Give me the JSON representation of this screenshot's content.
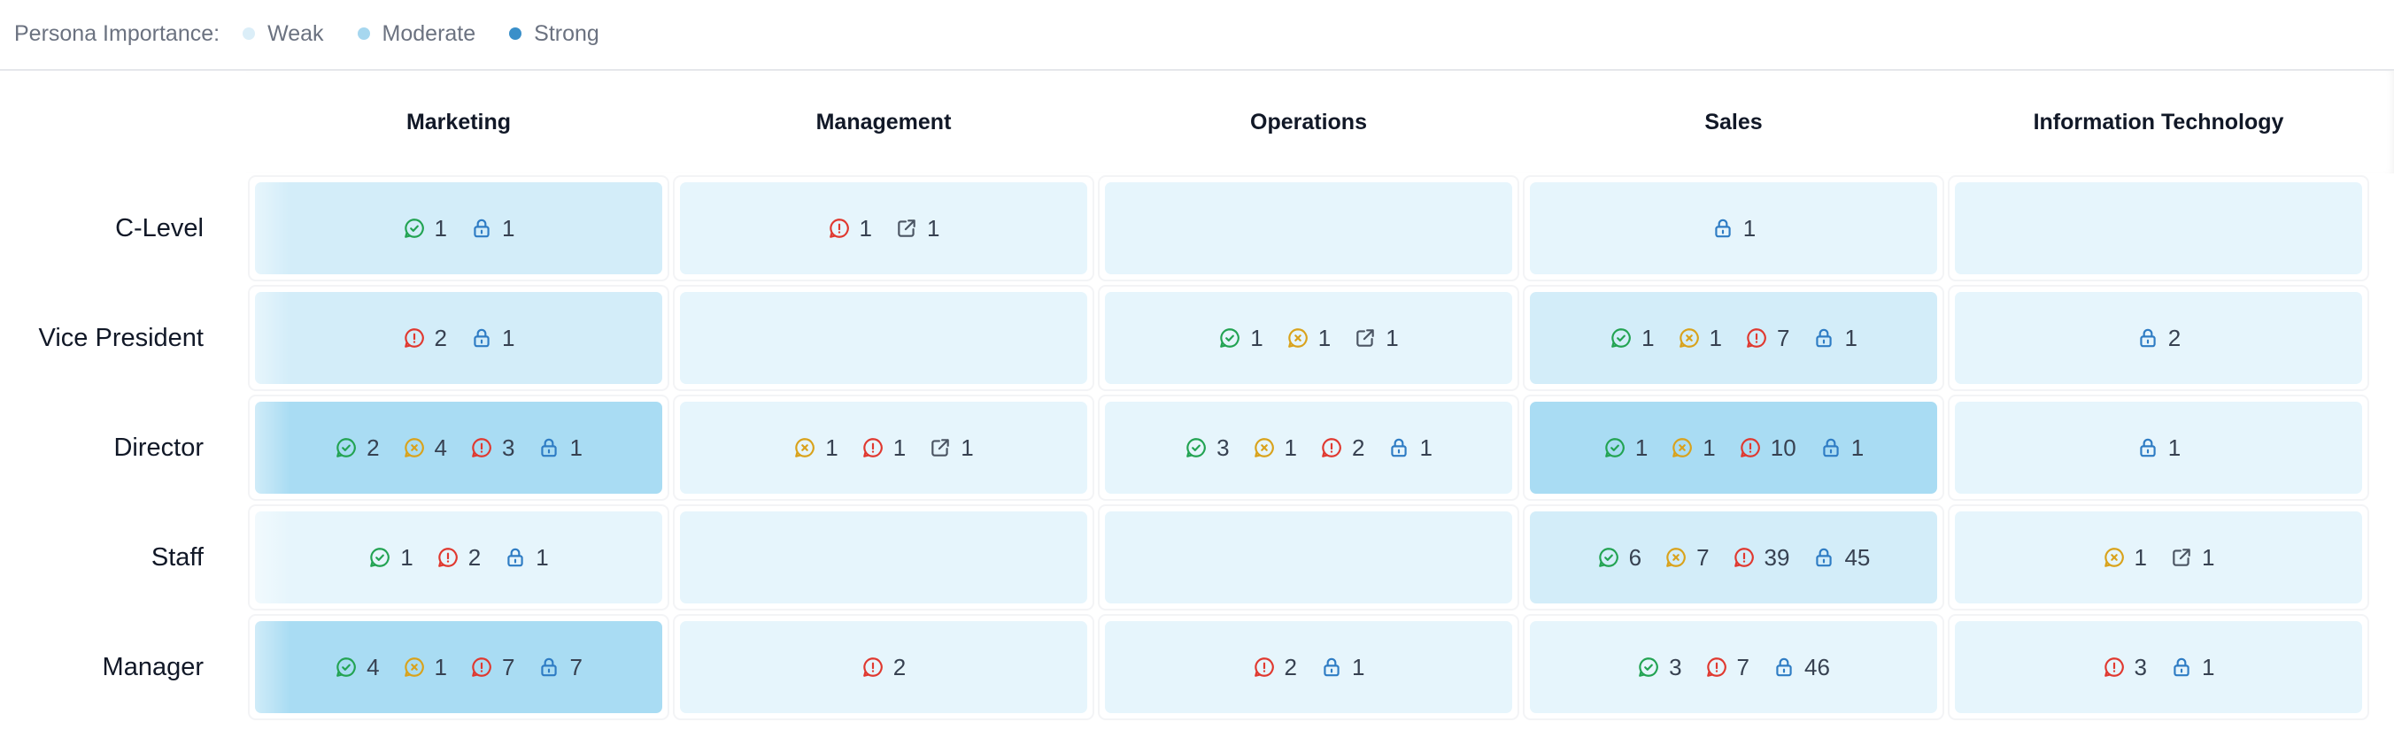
{
  "legend": {
    "title": "Persona Importance:",
    "items": [
      {
        "label": "Weak",
        "color": "#dbeef8"
      },
      {
        "label": "Moderate",
        "color": "#a6d7ef"
      },
      {
        "label": "Strong",
        "color": "#3a8fc9"
      }
    ]
  },
  "columns": [
    "Marketing",
    "Management",
    "Operations",
    "Sales",
    "Information Technology"
  ],
  "rows": [
    "C-Level",
    "Vice President",
    "Director",
    "Staff",
    "Manager"
  ],
  "icon_colors": {
    "check": "#22a352",
    "objection": "#d9a21b",
    "alert": "#e0382f",
    "lock": "#2e7cc4",
    "share": "#4b5563"
  },
  "cells": [
    [
      {
        "level": "moderate",
        "metrics": [
          {
            "icon": "check",
            "value": "1"
          },
          {
            "icon": "lock",
            "value": "1"
          }
        ]
      },
      {
        "level": "weak",
        "metrics": [
          {
            "icon": "alert",
            "value": "1"
          },
          {
            "icon": "share",
            "value": "1"
          }
        ]
      },
      {
        "level": "weak",
        "metrics": []
      },
      {
        "level": "weak",
        "metrics": [
          {
            "icon": "lock",
            "value": "1"
          }
        ]
      },
      {
        "level": "weak",
        "metrics": []
      }
    ],
    [
      {
        "level": "moderate",
        "metrics": [
          {
            "icon": "alert",
            "value": "2"
          },
          {
            "icon": "lock",
            "value": "1"
          }
        ]
      },
      {
        "level": "weak",
        "metrics": []
      },
      {
        "level": "weak",
        "metrics": [
          {
            "icon": "check",
            "value": "1"
          },
          {
            "icon": "objection",
            "value": "1"
          },
          {
            "icon": "share",
            "value": "1"
          }
        ]
      },
      {
        "level": "moderate",
        "metrics": [
          {
            "icon": "check",
            "value": "1"
          },
          {
            "icon": "objection",
            "value": "1"
          },
          {
            "icon": "alert",
            "value": "7"
          },
          {
            "icon": "lock",
            "value": "1"
          }
        ]
      },
      {
        "level": "weak",
        "metrics": [
          {
            "icon": "lock",
            "value": "2"
          }
        ]
      }
    ],
    [
      {
        "level": "strong",
        "metrics": [
          {
            "icon": "check",
            "value": "2"
          },
          {
            "icon": "objection",
            "value": "4"
          },
          {
            "icon": "alert",
            "value": "3"
          },
          {
            "icon": "lock",
            "value": "1"
          }
        ]
      },
      {
        "level": "weak",
        "metrics": [
          {
            "icon": "objection",
            "value": "1"
          },
          {
            "icon": "alert",
            "value": "1"
          },
          {
            "icon": "share",
            "value": "1"
          }
        ]
      },
      {
        "level": "weak",
        "metrics": [
          {
            "icon": "check",
            "value": "3"
          },
          {
            "icon": "objection",
            "value": "1"
          },
          {
            "icon": "alert",
            "value": "2"
          },
          {
            "icon": "lock",
            "value": "1"
          }
        ]
      },
      {
        "level": "strong",
        "metrics": [
          {
            "icon": "check",
            "value": "1"
          },
          {
            "icon": "objection",
            "value": "1"
          },
          {
            "icon": "alert",
            "value": "10"
          },
          {
            "icon": "lock",
            "value": "1"
          }
        ]
      },
      {
        "level": "weak",
        "metrics": [
          {
            "icon": "lock",
            "value": "1"
          }
        ]
      }
    ],
    [
      {
        "level": "weak",
        "metrics": [
          {
            "icon": "check",
            "value": "1"
          },
          {
            "icon": "alert",
            "value": "2"
          },
          {
            "icon": "lock",
            "value": "1"
          }
        ]
      },
      {
        "level": "weak",
        "metrics": []
      },
      {
        "level": "weak",
        "metrics": []
      },
      {
        "level": "moderate",
        "metrics": [
          {
            "icon": "check",
            "value": "6"
          },
          {
            "icon": "objection",
            "value": "7"
          },
          {
            "icon": "alert",
            "value": "39"
          },
          {
            "icon": "lock",
            "value": "45"
          }
        ]
      },
      {
        "level": "weak",
        "metrics": [
          {
            "icon": "objection",
            "value": "1"
          },
          {
            "icon": "share",
            "value": "1"
          }
        ]
      }
    ],
    [
      {
        "level": "strong",
        "metrics": [
          {
            "icon": "check",
            "value": "4"
          },
          {
            "icon": "objection",
            "value": "1"
          },
          {
            "icon": "alert",
            "value": "7"
          },
          {
            "icon": "lock",
            "value": "7"
          }
        ]
      },
      {
        "level": "weak",
        "metrics": [
          {
            "icon": "alert",
            "value": "2"
          }
        ]
      },
      {
        "level": "weak",
        "metrics": [
          {
            "icon": "alert",
            "value": "2"
          },
          {
            "icon": "lock",
            "value": "1"
          }
        ]
      },
      {
        "level": "weak",
        "metrics": [
          {
            "icon": "check",
            "value": "3"
          },
          {
            "icon": "alert",
            "value": "7"
          },
          {
            "icon": "lock",
            "value": "46"
          }
        ]
      },
      {
        "level": "weak",
        "metrics": [
          {
            "icon": "alert",
            "value": "3"
          },
          {
            "icon": "lock",
            "value": "1"
          }
        ]
      }
    ]
  ]
}
